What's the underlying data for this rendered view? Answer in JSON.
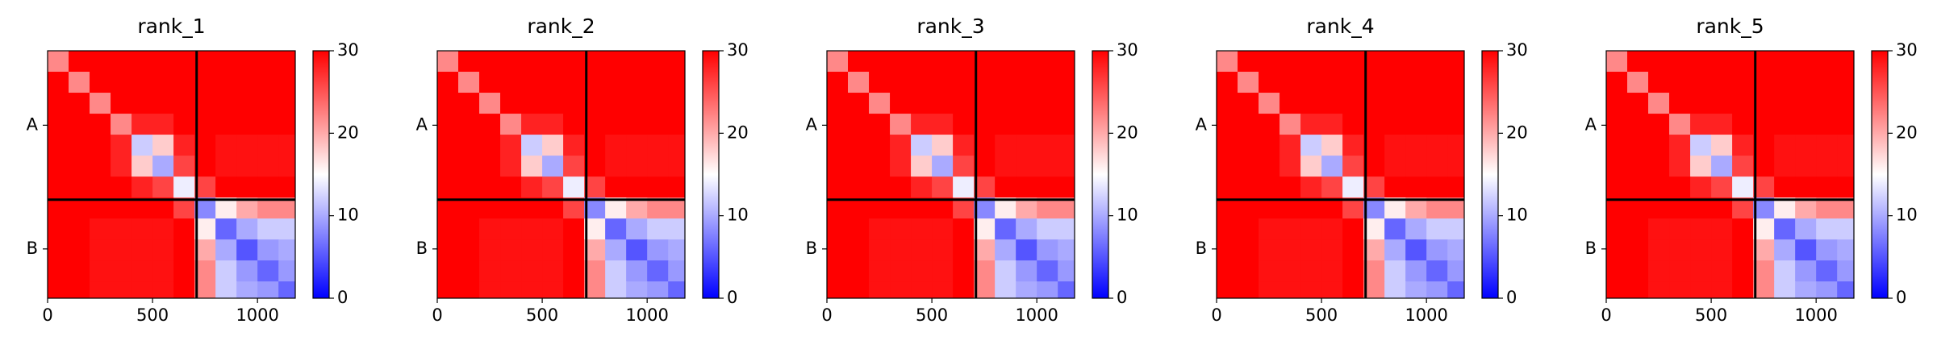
{
  "chart_data": [
    {
      "type": "heatmap",
      "title": "rank_1",
      "bins": [
        0,
        100,
        200,
        300,
        400,
        500,
        600,
        700,
        800,
        900,
        1000,
        1100,
        1180
      ],
      "values": [
        [
          22,
          30,
          30,
          30,
          30,
          30,
          30,
          30,
          30,
          30,
          30,
          30
        ],
        [
          30,
          22,
          30,
          30,
          30,
          30,
          30,
          30,
          30,
          30,
          30,
          30
        ],
        [
          30,
          30,
          22,
          30,
          30,
          30,
          30,
          30,
          30,
          30,
          30,
          30
        ],
        [
          30,
          30,
          30,
          22,
          28,
          28,
          30,
          30,
          30,
          30,
          30,
          30
        ],
        [
          30,
          30,
          30,
          28,
          12,
          18,
          28,
          30,
          29,
          29,
          29,
          29
        ],
        [
          30,
          30,
          30,
          28,
          18,
          10,
          26,
          30,
          29,
          29,
          29,
          29
        ],
        [
          30,
          30,
          30,
          30,
          28,
          26,
          14,
          26,
          30,
          30,
          30,
          30
        ],
        [
          30,
          30,
          30,
          30,
          30,
          30,
          26,
          8,
          16,
          20,
          22,
          22
        ],
        [
          30,
          30,
          29,
          29,
          29,
          29,
          30,
          16,
          6,
          10,
          12,
          12
        ],
        [
          30,
          30,
          29,
          29,
          29,
          29,
          30,
          20,
          10,
          5,
          9,
          10
        ],
        [
          30,
          30,
          29,
          29,
          29,
          29,
          30,
          22,
          12,
          9,
          6,
          9
        ],
        [
          30,
          30,
          29,
          29,
          29,
          29,
          30,
          22,
          12,
          10,
          9,
          6
        ]
      ],
      "xlim": [
        0,
        1180
      ],
      "xticks": [
        0,
        500,
        1000
      ],
      "ylim": [
        1180,
        0
      ],
      "yticks": [
        {
          "value": 355,
          "label": "A"
        },
        {
          "value": 945,
          "label": "B"
        }
      ],
      "chain_breaks": [
        710
      ],
      "clim": [
        0,
        30
      ],
      "cticks": [
        0,
        10,
        20,
        30
      ],
      "colormap": [
        "#0000ff",
        "#ffffff",
        "#ff0000"
      ]
    },
    {
      "type": "heatmap",
      "title": "rank_2",
      "bins": [
        0,
        100,
        200,
        300,
        400,
        500,
        600,
        700,
        800,
        900,
        1000,
        1100,
        1180
      ],
      "values": [
        [
          22,
          30,
          30,
          30,
          30,
          30,
          30,
          30,
          30,
          30,
          30,
          30
        ],
        [
          30,
          22,
          30,
          30,
          30,
          30,
          30,
          30,
          30,
          30,
          30,
          30
        ],
        [
          30,
          30,
          22,
          30,
          30,
          30,
          30,
          30,
          30,
          30,
          30,
          30
        ],
        [
          30,
          30,
          30,
          22,
          28,
          28,
          30,
          30,
          30,
          30,
          30,
          30
        ],
        [
          30,
          30,
          30,
          28,
          12,
          18,
          28,
          30,
          29,
          29,
          29,
          29
        ],
        [
          30,
          30,
          30,
          28,
          18,
          10,
          26,
          30,
          29,
          29,
          29,
          29
        ],
        [
          30,
          30,
          30,
          30,
          28,
          26,
          14,
          26,
          30,
          30,
          30,
          30
        ],
        [
          30,
          30,
          30,
          30,
          30,
          30,
          26,
          8,
          16,
          20,
          22,
          22
        ],
        [
          30,
          30,
          29,
          29,
          29,
          29,
          30,
          16,
          6,
          10,
          12,
          12
        ],
        [
          30,
          30,
          29,
          29,
          29,
          29,
          30,
          20,
          10,
          5,
          9,
          10
        ],
        [
          30,
          30,
          29,
          29,
          29,
          29,
          30,
          22,
          12,
          9,
          6,
          9
        ],
        [
          30,
          30,
          29,
          29,
          29,
          29,
          30,
          22,
          12,
          10,
          9,
          6
        ]
      ],
      "xlim": [
        0,
        1180
      ],
      "xticks": [
        0,
        500,
        1000
      ],
      "ylim": [
        1180,
        0
      ],
      "yticks": [
        {
          "value": 355,
          "label": "A"
        },
        {
          "value": 945,
          "label": "B"
        }
      ],
      "chain_breaks": [
        710
      ],
      "clim": [
        0,
        30
      ],
      "cticks": [
        0,
        10,
        20,
        30
      ],
      "colormap": [
        "#0000ff",
        "#ffffff",
        "#ff0000"
      ]
    },
    {
      "type": "heatmap",
      "title": "rank_3",
      "bins": [
        0,
        100,
        200,
        300,
        400,
        500,
        600,
        700,
        800,
        900,
        1000,
        1100,
        1180
      ],
      "values": [
        [
          22,
          30,
          30,
          30,
          30,
          30,
          30,
          30,
          30,
          30,
          30,
          30
        ],
        [
          30,
          22,
          30,
          30,
          30,
          30,
          30,
          30,
          30,
          30,
          30,
          30
        ],
        [
          30,
          30,
          22,
          30,
          30,
          30,
          30,
          30,
          30,
          30,
          30,
          30
        ],
        [
          30,
          30,
          30,
          22,
          28,
          28,
          30,
          30,
          30,
          30,
          30,
          30
        ],
        [
          30,
          30,
          30,
          28,
          12,
          18,
          28,
          30,
          29,
          29,
          29,
          29
        ],
        [
          30,
          30,
          30,
          28,
          18,
          10,
          26,
          30,
          29,
          29,
          29,
          29
        ],
        [
          30,
          30,
          30,
          30,
          28,
          26,
          14,
          26,
          30,
          30,
          30,
          30
        ],
        [
          30,
          30,
          30,
          30,
          30,
          30,
          26,
          8,
          16,
          20,
          22,
          22
        ],
        [
          30,
          30,
          29,
          29,
          29,
          29,
          30,
          16,
          6,
          10,
          12,
          12
        ],
        [
          30,
          30,
          29,
          29,
          29,
          29,
          30,
          20,
          10,
          5,
          9,
          10
        ],
        [
          30,
          30,
          29,
          29,
          29,
          29,
          30,
          22,
          12,
          9,
          6,
          9
        ],
        [
          30,
          30,
          29,
          29,
          29,
          29,
          30,
          22,
          12,
          10,
          9,
          6
        ]
      ],
      "xlim": [
        0,
        1180
      ],
      "xticks": [
        0,
        500,
        1000
      ],
      "ylim": [
        1180,
        0
      ],
      "yticks": [
        {
          "value": 355,
          "label": "A"
        },
        {
          "value": 945,
          "label": "B"
        }
      ],
      "chain_breaks": [
        710
      ],
      "clim": [
        0,
        30
      ],
      "cticks": [
        0,
        10,
        20,
        30
      ],
      "colormap": [
        "#0000ff",
        "#ffffff",
        "#ff0000"
      ]
    },
    {
      "type": "heatmap",
      "title": "rank_4",
      "bins": [
        0,
        100,
        200,
        300,
        400,
        500,
        600,
        700,
        800,
        900,
        1000,
        1100,
        1180
      ],
      "values": [
        [
          22,
          30,
          30,
          30,
          30,
          30,
          30,
          30,
          30,
          30,
          30,
          30
        ],
        [
          30,
          22,
          30,
          30,
          30,
          30,
          30,
          30,
          30,
          30,
          30,
          30
        ],
        [
          30,
          30,
          22,
          30,
          30,
          30,
          30,
          30,
          30,
          30,
          30,
          30
        ],
        [
          30,
          30,
          30,
          22,
          28,
          28,
          30,
          30,
          30,
          30,
          30,
          30
        ],
        [
          30,
          30,
          30,
          28,
          12,
          18,
          28,
          30,
          29,
          29,
          29,
          29
        ],
        [
          30,
          30,
          30,
          28,
          18,
          10,
          26,
          30,
          29,
          29,
          29,
          29
        ],
        [
          30,
          30,
          30,
          30,
          28,
          26,
          14,
          26,
          30,
          30,
          30,
          30
        ],
        [
          30,
          30,
          30,
          30,
          30,
          30,
          26,
          8,
          16,
          20,
          22,
          22
        ],
        [
          30,
          30,
          29,
          29,
          29,
          29,
          30,
          16,
          6,
          10,
          12,
          12
        ],
        [
          30,
          30,
          29,
          29,
          29,
          29,
          30,
          20,
          10,
          5,
          9,
          10
        ],
        [
          30,
          30,
          29,
          29,
          29,
          29,
          30,
          22,
          12,
          9,
          6,
          9
        ],
        [
          30,
          30,
          29,
          29,
          29,
          29,
          30,
          22,
          12,
          10,
          9,
          6
        ]
      ],
      "xlim": [
        0,
        1180
      ],
      "xticks": [
        0,
        500,
        1000
      ],
      "ylim": [
        1180,
        0
      ],
      "yticks": [
        {
          "value": 355,
          "label": "A"
        },
        {
          "value": 945,
          "label": "B"
        }
      ],
      "chain_breaks": [
        710
      ],
      "clim": [
        0,
        30
      ],
      "cticks": [
        0,
        10,
        20,
        30
      ],
      "colormap": [
        "#0000ff",
        "#ffffff",
        "#ff0000"
      ]
    },
    {
      "type": "heatmap",
      "title": "rank_5",
      "bins": [
        0,
        100,
        200,
        300,
        400,
        500,
        600,
        700,
        800,
        900,
        1000,
        1100,
        1180
      ],
      "values": [
        [
          22,
          30,
          30,
          30,
          30,
          30,
          30,
          30,
          30,
          30,
          30,
          30
        ],
        [
          30,
          22,
          30,
          30,
          30,
          30,
          30,
          30,
          30,
          30,
          30,
          30
        ],
        [
          30,
          30,
          22,
          30,
          30,
          30,
          30,
          30,
          30,
          30,
          30,
          30
        ],
        [
          30,
          30,
          30,
          22,
          28,
          28,
          30,
          30,
          30,
          30,
          30,
          30
        ],
        [
          30,
          30,
          30,
          28,
          12,
          18,
          28,
          30,
          29,
          29,
          29,
          29
        ],
        [
          30,
          30,
          30,
          28,
          18,
          10,
          26,
          30,
          29,
          29,
          29,
          29
        ],
        [
          30,
          30,
          30,
          30,
          28,
          26,
          14,
          26,
          30,
          30,
          30,
          30
        ],
        [
          30,
          30,
          30,
          30,
          30,
          30,
          26,
          8,
          16,
          20,
          22,
          22
        ],
        [
          30,
          30,
          29,
          29,
          29,
          29,
          30,
          16,
          6,
          10,
          12,
          12
        ],
        [
          30,
          30,
          29,
          29,
          29,
          29,
          30,
          20,
          10,
          5,
          9,
          10
        ],
        [
          30,
          30,
          29,
          29,
          29,
          29,
          30,
          22,
          12,
          9,
          6,
          9
        ],
        [
          30,
          30,
          29,
          29,
          29,
          29,
          30,
          22,
          12,
          10,
          9,
          6
        ]
      ],
      "xlim": [
        0,
        1180
      ],
      "xticks": [
        0,
        500,
        1000
      ],
      "ylim": [
        1180,
        0
      ],
      "yticks": [
        {
          "value": 355,
          "label": "A"
        },
        {
          "value": 945,
          "label": "B"
        }
      ],
      "chain_breaks": [
        710
      ],
      "clim": [
        0,
        30
      ],
      "cticks": [
        0,
        10,
        20,
        30
      ],
      "colormap": [
        "#0000ff",
        "#ffffff",
        "#ff0000"
      ]
    }
  ]
}
